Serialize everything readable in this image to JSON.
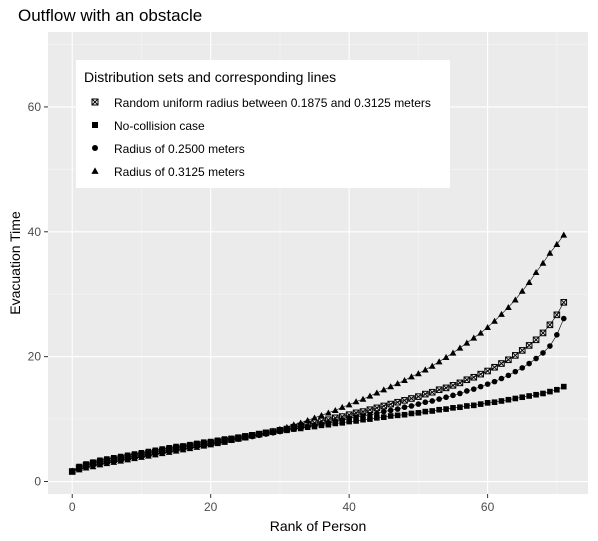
{
  "chart_data": {
    "type": "line",
    "title": "Outflow with an obstacle",
    "xlabel": "Rank of Person",
    "ylabel": "Evacuation Time",
    "xlim": [
      -3.5,
      74.5
    ],
    "ylim": [
      -2,
      72
    ],
    "x_ticks": [
      0,
      20,
      40,
      60
    ],
    "y_ticks": [
      0,
      20,
      40,
      60
    ],
    "grid": true,
    "legend": {
      "title": "Distribution sets and corresponding lines",
      "position": "top-left",
      "entries": [
        "Random uniform radius between 0.1875 and 0.3125 meters",
        "No-collision case",
        "Radius of 0.2500 meters",
        "Radius of 0.3125 meters"
      ]
    },
    "x": [
      0,
      1,
      2,
      3,
      4,
      5,
      6,
      7,
      8,
      9,
      10,
      11,
      12,
      13,
      14,
      15,
      16,
      17,
      18,
      19,
      20,
      21,
      22,
      23,
      24,
      25,
      26,
      27,
      28,
      29,
      30,
      31,
      32,
      33,
      34,
      35,
      36,
      37,
      38,
      39,
      40,
      41,
      42,
      43,
      44,
      45,
      46,
      47,
      48,
      49,
      50,
      51,
      52,
      53,
      54,
      55,
      56,
      57,
      58,
      59,
      60,
      61,
      62,
      63,
      64,
      65,
      66,
      67,
      68,
      69,
      70,
      71
    ],
    "series": [
      {
        "name": "Random uniform radius between 0.1875 and 0.3125 meters",
        "marker": "square-cross",
        "values": [
          1.6,
          2.2,
          2.6,
          2.9,
          3.1,
          3.3,
          3.5,
          3.7,
          3.9,
          4.1,
          4.3,
          4.5,
          4.7,
          4.9,
          5.1,
          5.3,
          5.5,
          5.7,
          5.9,
          6.0,
          6.2,
          6.4,
          6.6,
          6.8,
          7.0,
          7.2,
          7.4,
          7.6,
          7.8,
          8.0,
          8.2,
          8.4,
          8.7,
          8.9,
          9.2,
          9.4,
          9.7,
          9.9,
          10.2,
          10.4,
          10.7,
          11.0,
          11.2,
          11.5,
          11.8,
          12.1,
          12.4,
          12.7,
          13.0,
          13.3,
          13.6,
          14.0,
          14.3,
          14.7,
          15.0,
          15.4,
          15.8,
          16.3,
          16.7,
          17.2,
          17.7,
          18.3,
          18.9,
          19.5,
          20.2,
          21.0,
          21.8,
          22.7,
          23.8,
          25.1,
          26.7,
          28.7
        ]
      },
      {
        "name": "No-collision case",
        "marker": "square",
        "values": [
          1.6,
          2.4,
          2.8,
          3.1,
          3.4,
          3.6,
          3.8,
          4.0,
          4.2,
          4.4,
          4.6,
          4.8,
          5.0,
          5.2,
          5.4,
          5.6,
          5.7,
          5.9,
          6.1,
          6.3,
          6.4,
          6.6,
          6.8,
          6.9,
          7.1,
          7.3,
          7.4,
          7.6,
          7.8,
          7.9,
          8.1,
          8.2,
          8.4,
          8.5,
          8.7,
          8.8,
          9.0,
          9.1,
          9.3,
          9.4,
          9.6,
          9.7,
          9.9,
          10.0,
          10.2,
          10.3,
          10.5,
          10.6,
          10.7,
          10.9,
          11.0,
          11.2,
          11.3,
          11.5,
          11.6,
          11.8,
          11.9,
          12.1,
          12.2,
          12.4,
          12.6,
          12.7,
          12.9,
          13.1,
          13.3,
          13.5,
          13.7,
          13.9,
          14.1,
          14.4,
          14.7,
          15.2
        ]
      },
      {
        "name": "Radius of 0.2500 meters",
        "marker": "circle",
        "values": [
          1.7,
          2.0,
          2.3,
          2.6,
          2.8,
          3.0,
          3.2,
          3.4,
          3.6,
          3.8,
          4.0,
          4.2,
          4.4,
          4.6,
          4.8,
          5.0,
          5.2,
          5.4,
          5.6,
          5.8,
          6.0,
          6.2,
          6.4,
          6.6,
          6.8,
          7.0,
          7.2,
          7.4,
          7.6,
          7.8,
          8.0,
          8.2,
          8.4,
          8.6,
          8.8,
          9.0,
          9.2,
          9.4,
          9.6,
          9.8,
          10.1,
          10.3,
          10.5,
          10.7,
          10.9,
          11.2,
          11.4,
          11.6,
          11.9,
          12.1,
          12.4,
          12.7,
          12.9,
          13.2,
          13.5,
          13.8,
          14.1,
          14.5,
          14.8,
          15.2,
          15.6,
          16.0,
          16.5,
          17.0,
          17.6,
          18.2,
          18.9,
          19.7,
          20.6,
          21.7,
          23.5,
          26.1
        ]
      },
      {
        "name": "Radius of 0.3125 meters",
        "marker": "triangle",
        "values": [
          1.7,
          1.9,
          2.2,
          2.4,
          2.7,
          2.9,
          3.1,
          3.3,
          3.5,
          3.7,
          3.9,
          4.1,
          4.3,
          4.5,
          4.7,
          4.9,
          5.1,
          5.3,
          5.5,
          5.7,
          5.9,
          6.1,
          6.3,
          6.6,
          6.8,
          7.0,
          7.3,
          7.5,
          7.8,
          8.1,
          8.4,
          8.7,
          9.1,
          9.4,
          9.8,
          10.2,
          10.6,
          11.0,
          11.4,
          11.9,
          12.3,
          12.8,
          13.2,
          13.7,
          14.2,
          14.7,
          15.2,
          15.7,
          16.2,
          16.8,
          17.3,
          17.9,
          18.5,
          19.2,
          19.9,
          20.6,
          21.4,
          22.2,
          23.0,
          23.8,
          24.7,
          25.7,
          26.8,
          27.9,
          29.1,
          30.5,
          31.9,
          33.5,
          35.0,
          36.6,
          38.0,
          39.5
        ]
      }
    ]
  }
}
